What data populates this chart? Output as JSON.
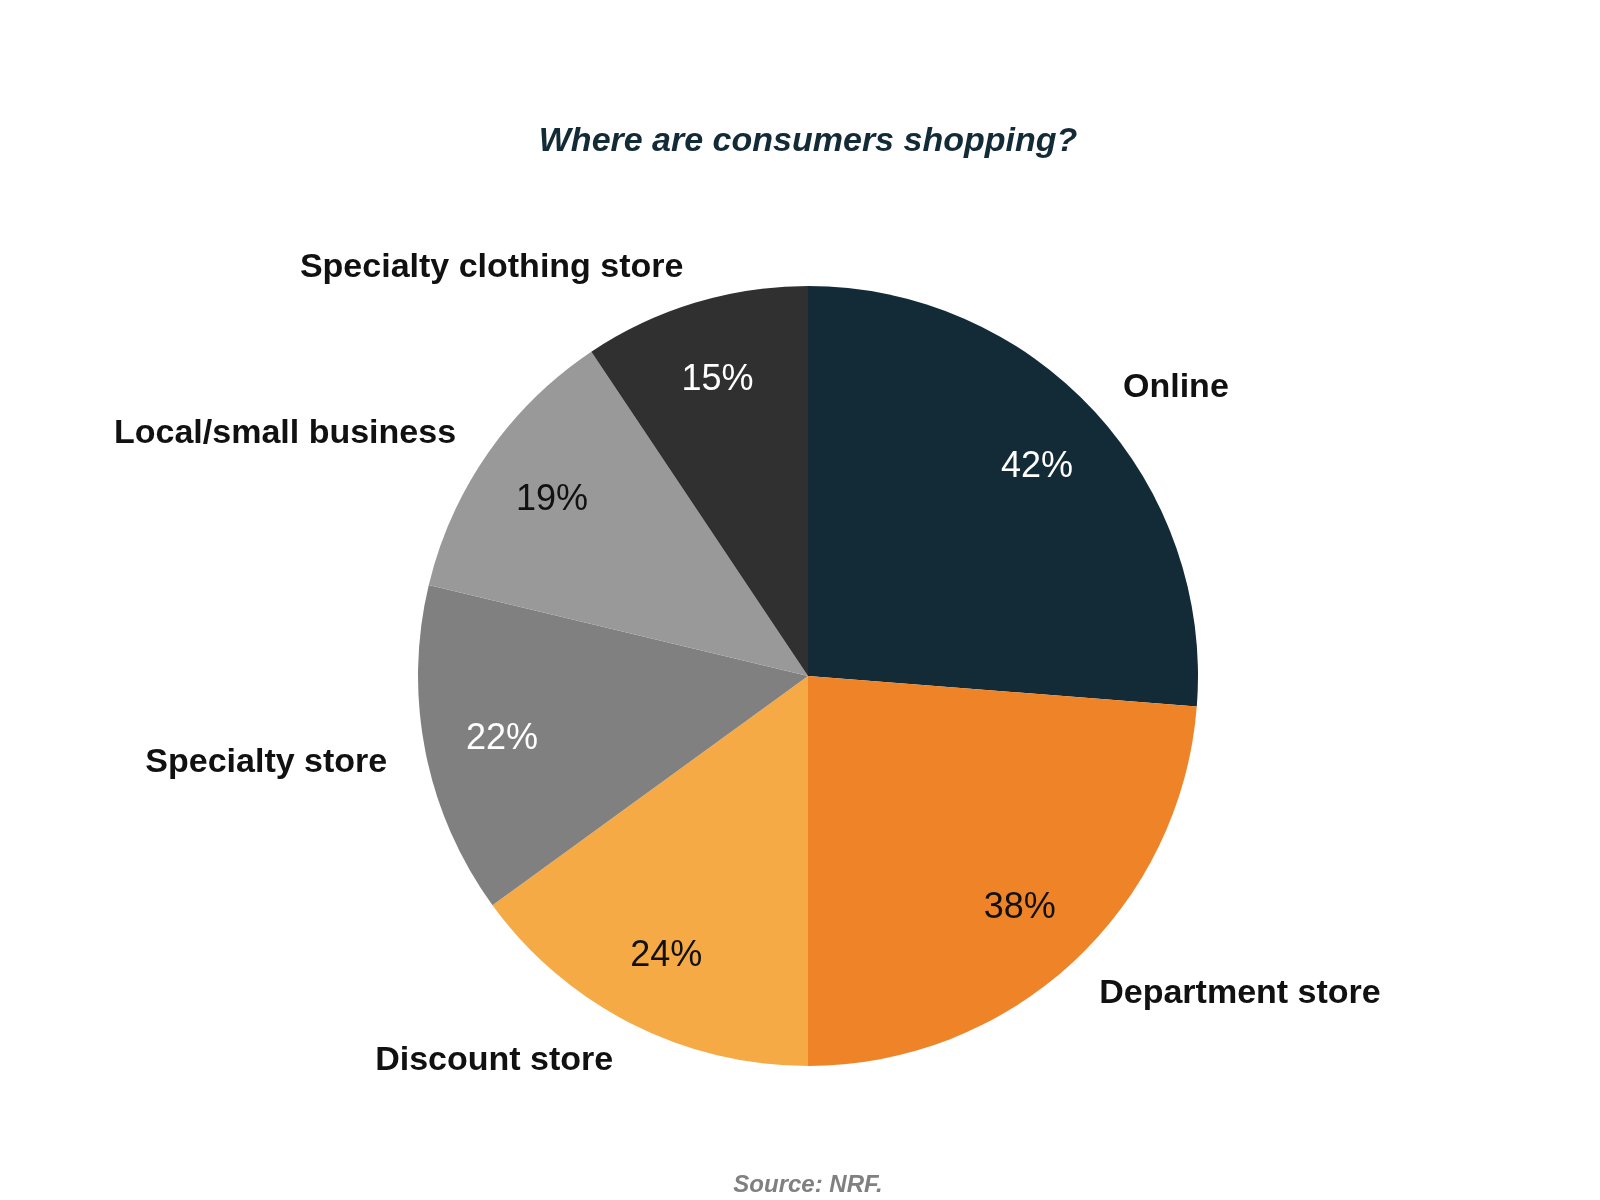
{
  "chart_data": {
    "type": "pie",
    "title": "Where are consumers shopping?",
    "categories": [
      "Online",
      "Department store",
      "Discount store",
      "Specialty store",
      "Local/small business",
      "Specialty clothing store"
    ],
    "values": [
      42,
      38,
      24,
      22,
      19,
      15
    ],
    "value_labels": [
      "42%",
      "38%",
      "24%",
      "22%",
      "19%",
      "15%"
    ],
    "colors": [
      "#132a37",
      "#ee8427",
      "#f6aa45",
      "#808080",
      "#999999",
      "#303030"
    ],
    "annotations": [
      "Source: NRF."
    ]
  }
}
